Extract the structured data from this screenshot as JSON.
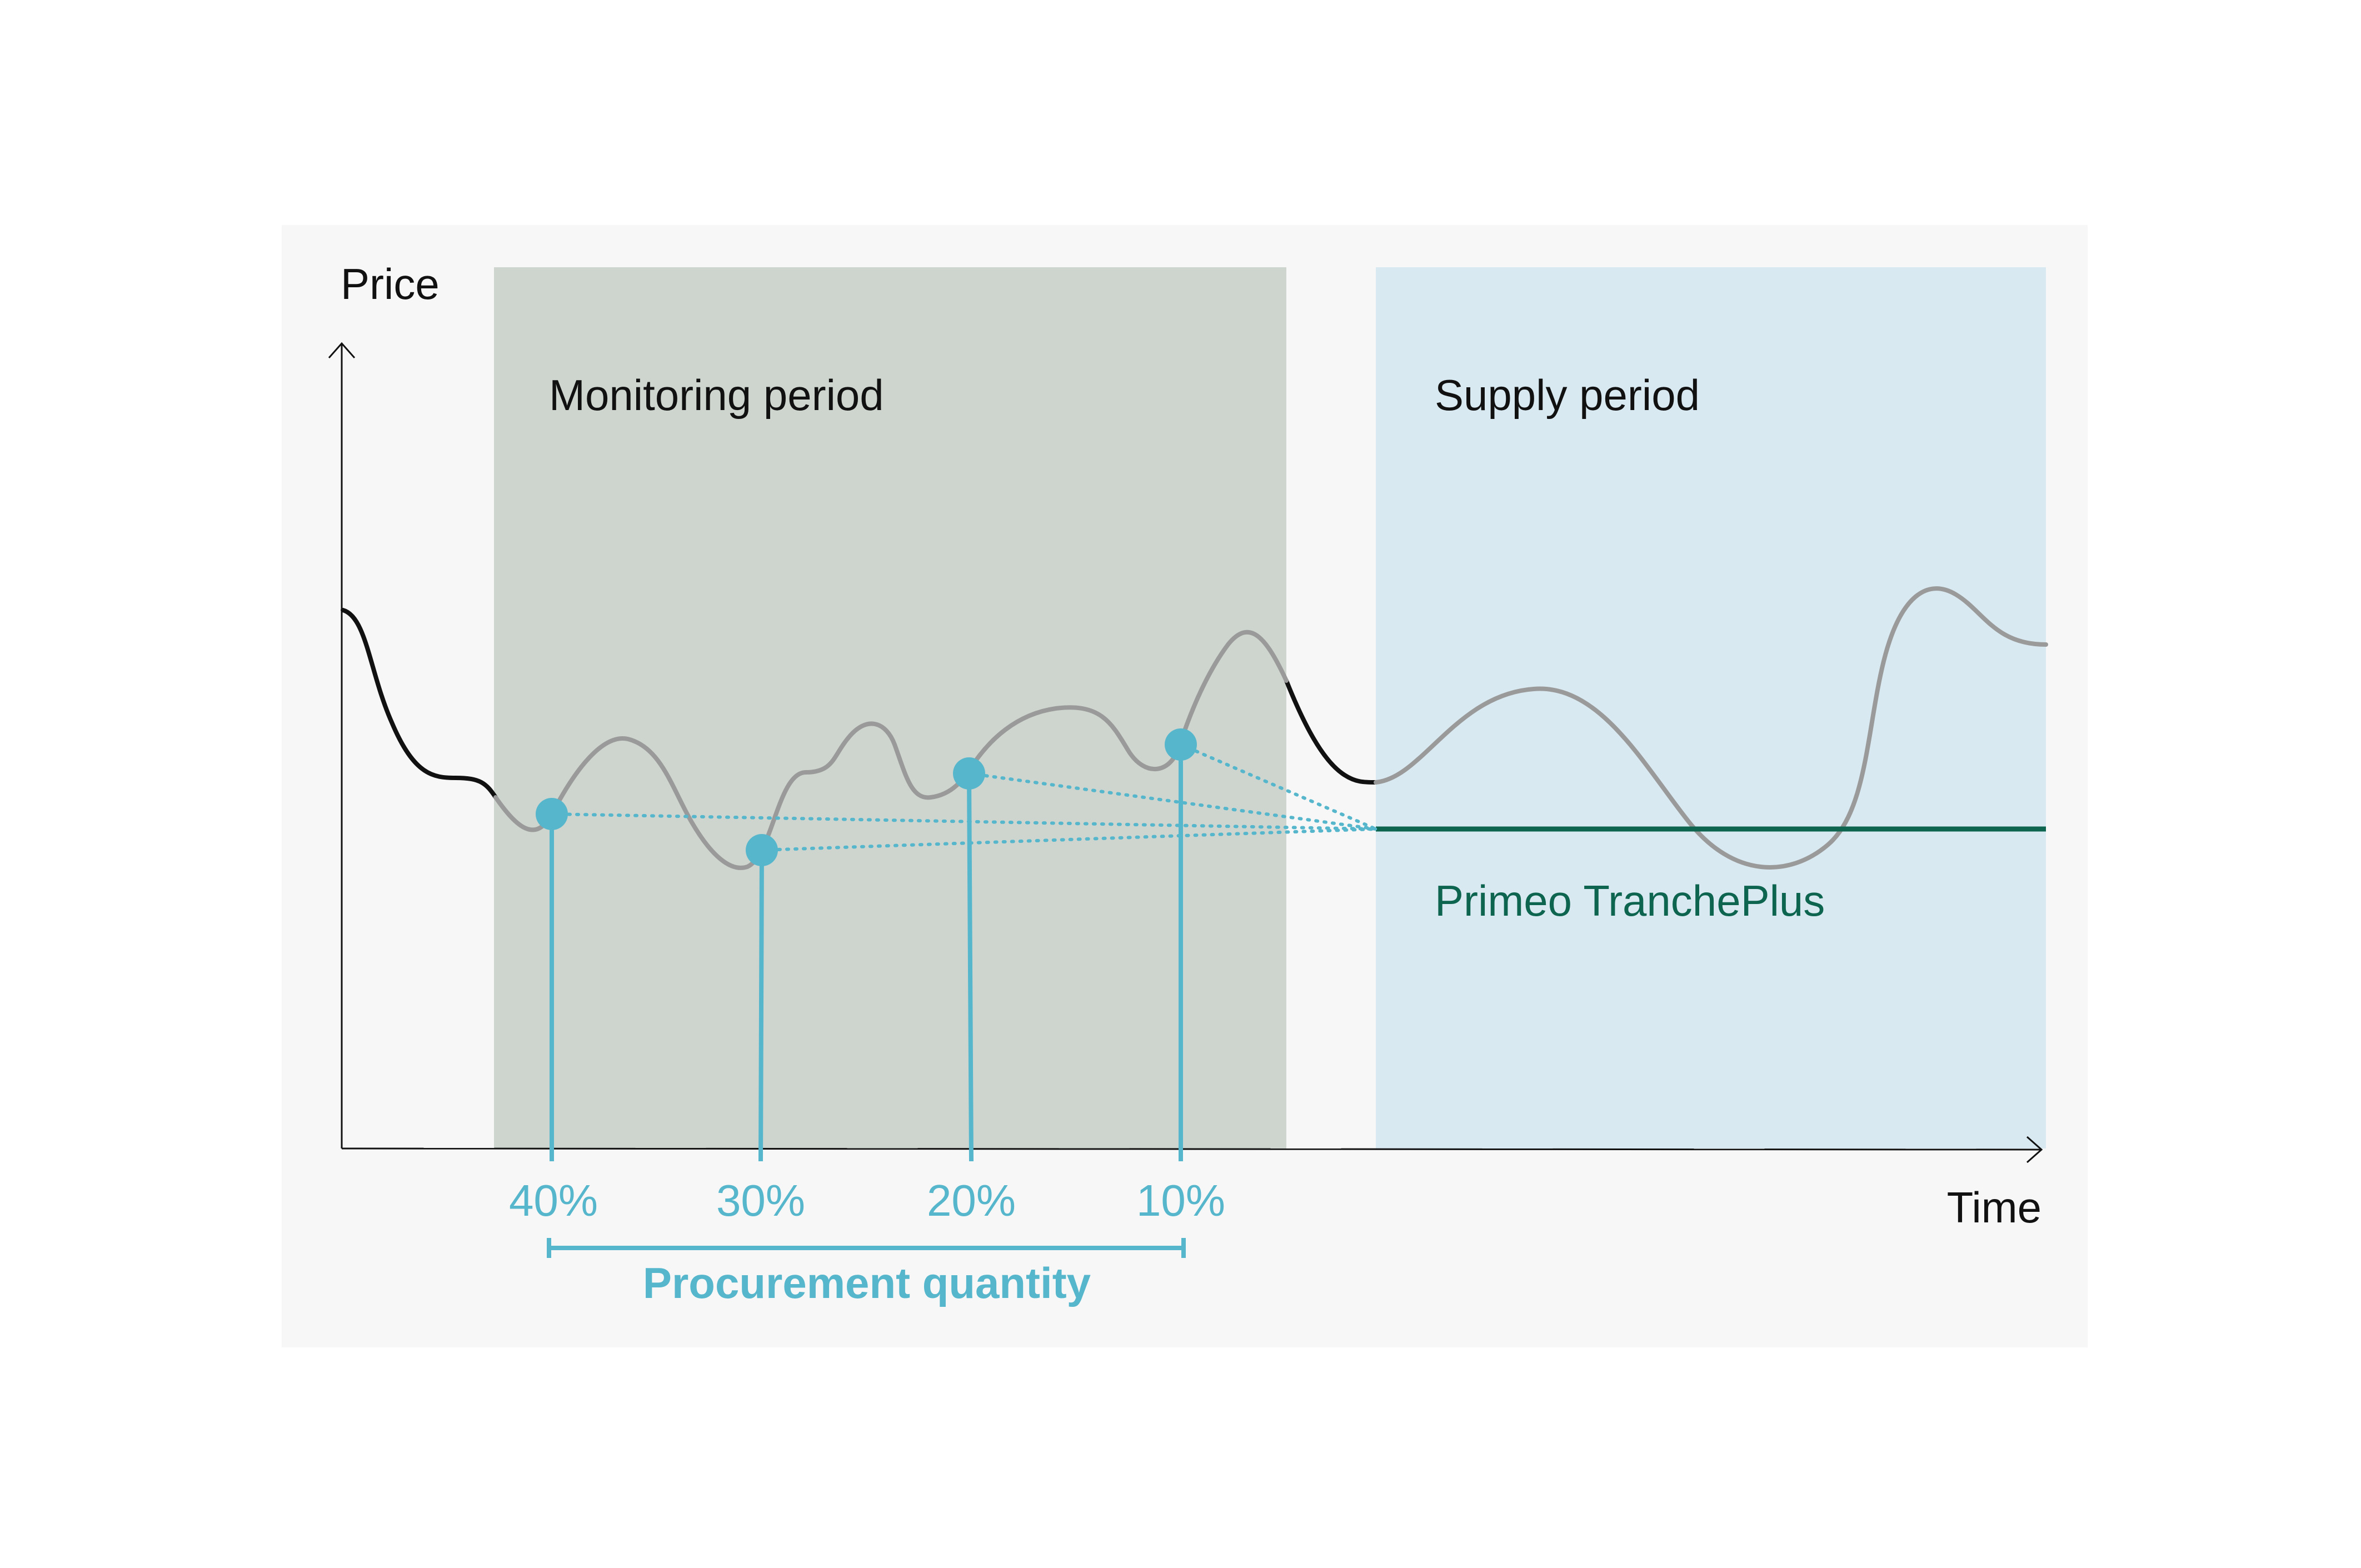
{
  "axes": {
    "y_label": "Price",
    "x_label": "Time"
  },
  "periods": {
    "monitoring": "Monitoring period",
    "supply": "Supply period"
  },
  "product": {
    "name": "Primeo TranchePlus"
  },
  "tranches": [
    {
      "label": "40%"
    },
    {
      "label": "30%"
    },
    {
      "label": "20%"
    },
    {
      "label": "10%"
    }
  ],
  "procurement": {
    "label": "Procurement quantity"
  },
  "colors": {
    "panel_bg": "#f7f7f7",
    "monitoring_bg": "#cdd5ce",
    "supply_bg": "#d8e9f1",
    "accent_teal": "#56b6cc",
    "fixed_price": "#0d6550",
    "market_curve": "#9a9a9a",
    "historic_curve": "#111111",
    "text": "#111111"
  }
}
